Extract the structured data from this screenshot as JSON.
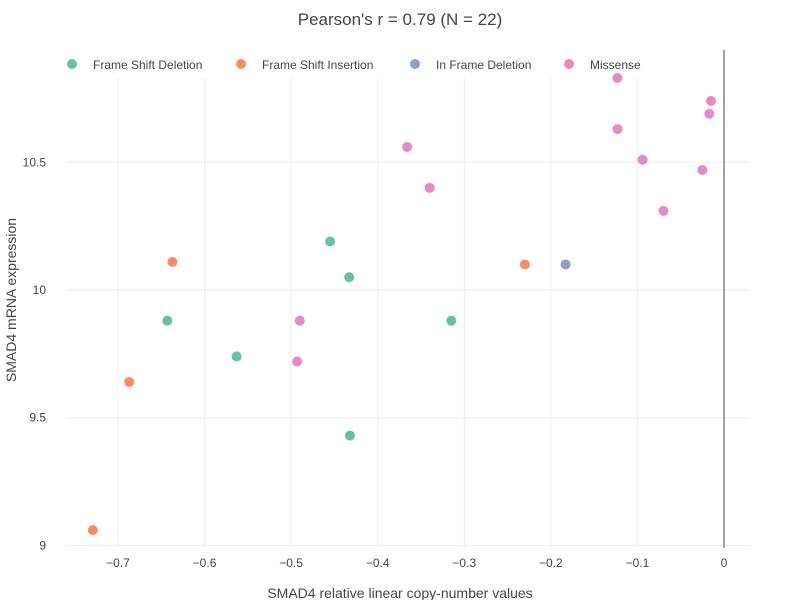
{
  "chart_data": {
    "type": "scatter",
    "title": "Pearson's r = 0.79 (N = 22)",
    "xlabel": "SMAD4 relative linear copy-number values",
    "ylabel": "SMAD4 mRNA expression",
    "xlim": [
      -0.76,
      0.03
    ],
    "ylim": [
      8.99,
      10.83
    ],
    "x_ticks": [
      -0.7,
      -0.6,
      -0.5,
      -0.4,
      -0.3,
      -0.2,
      -0.1,
      0
    ],
    "x_tick_labels": [
      "−0.7",
      "−0.6",
      "−0.5",
      "−0.4",
      "−0.3",
      "−0.2",
      "−0.1",
      "0"
    ],
    "y_ticks": [
      9,
      9.5,
      10,
      10.5
    ],
    "y_tick_labels": [
      "9",
      "9.5",
      "10",
      "10.5"
    ],
    "grid": true,
    "legend_position": "top",
    "series": [
      {
        "name": "Frame Shift Deletion",
        "color": "#66c2a5",
        "points": [
          [
            -0.643,
            9.88
          ],
          [
            -0.563,
            9.74
          ],
          [
            -0.455,
            10.19
          ],
          [
            -0.433,
            10.05
          ],
          [
            -0.432,
            9.43
          ],
          [
            -0.315,
            9.88
          ]
        ]
      },
      {
        "name": "Frame Shift Insertion",
        "color": "#fc8d62",
        "points": [
          [
            -0.729,
            9.06
          ],
          [
            -0.687,
            9.64
          ],
          [
            -0.637,
            10.11
          ],
          [
            -0.23,
            10.1
          ]
        ]
      },
      {
        "name": "In Frame Deletion",
        "color": "#8da0cb",
        "points": [
          [
            -0.183,
            10.1
          ]
        ]
      },
      {
        "name": "Missense",
        "color": "#e78ac3",
        "points": [
          [
            -0.49,
            9.88
          ],
          [
            -0.493,
            9.72
          ],
          [
            -0.366,
            10.56
          ],
          [
            -0.34,
            10.4
          ],
          [
            -0.123,
            10.83
          ],
          [
            -0.015,
            10.74
          ],
          [
            -0.123,
            10.63
          ],
          [
            -0.017,
            10.69
          ],
          [
            -0.094,
            10.51
          ],
          [
            -0.025,
            10.47
          ],
          [
            -0.07,
            10.31
          ]
        ]
      }
    ]
  }
}
